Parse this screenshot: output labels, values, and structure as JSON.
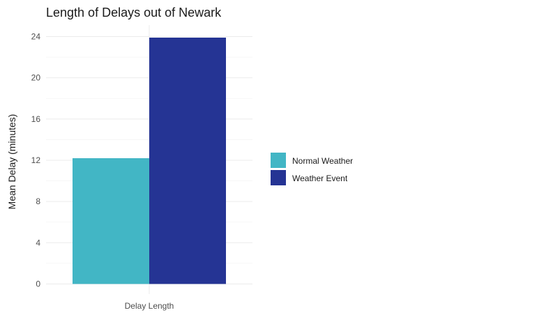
{
  "chart_data": {
    "type": "bar",
    "title": "Length of Delays out of Newark",
    "xlabel": "",
    "ylabel": "Mean Delay (minutes)",
    "categories": [
      "Delay Length"
    ],
    "series": [
      {
        "name": "Normal Weather",
        "values": [
          12.2
        ],
        "color": "#42b6c5"
      },
      {
        "name": "Weather Event",
        "values": [
          23.9
        ],
        "color": "#253494"
      }
    ],
    "ylim": [
      0,
      25
    ],
    "yticks": [
      0,
      4,
      8,
      12,
      16,
      20,
      24
    ],
    "grid": true,
    "legend_position": "right"
  }
}
